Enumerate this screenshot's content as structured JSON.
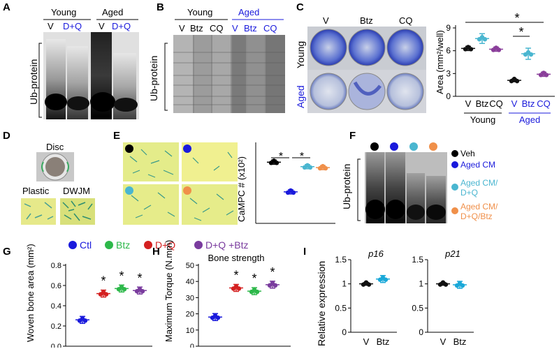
{
  "panels": {
    "A": {
      "label": "A",
      "groups": [
        "Young",
        "Aged"
      ],
      "lanes": [
        "V",
        "D+Q",
        "V",
        "D+Q"
      ],
      "ylabel": "Ub-protein"
    },
    "B": {
      "label": "B",
      "groups": [
        "Young",
        "Aged"
      ],
      "lanes": [
        "V",
        "Btz",
        "CQ",
        "V",
        "Btz",
        "CQ"
      ],
      "ylabel": "Ub-protein"
    },
    "C": {
      "label": "C",
      "cols": [
        "V",
        "Btz",
        "CQ"
      ],
      "rows": [
        "Young",
        "Aged"
      ],
      "star": "*"
    },
    "D": {
      "label": "D",
      "disc": "Disc",
      "plastic": "Plastic",
      "dwjm": "DWJM"
    },
    "E": {
      "label": "E",
      "star": "*"
    },
    "F": {
      "label": "F",
      "ylabel": "Ub-protein",
      "legend": [
        "Veh",
        "Aged CM",
        "Aged CM/ D+Q",
        "Aged CM/ D+Q/Btz"
      ],
      "legend_lines": [
        [
          "Veh"
        ],
        [
          "Aged CM"
        ],
        [
          "Aged CM/",
          "D+Q"
        ],
        [
          "Aged CM/",
          "D+Q/Btz"
        ]
      ]
    },
    "G": {
      "label": "G",
      "legend": [
        "Ctl",
        "Btz",
        "D+Q",
        "D+Q +Btz"
      ],
      "star": "*"
    },
    "H": {
      "label": "H",
      "title": "Bone strength",
      "star": "*"
    },
    "I": {
      "label": "I",
      "titles": [
        "p16",
        "p21"
      ],
      "ylabel": "Relative expression"
    }
  },
  "colors": {
    "ctl": "#1a1adc",
    "btz": "#2db84a",
    "dq": "#d42020",
    "dqbtz": "#7a3c9e",
    "veh": "#000000",
    "agedcm_dq": "#4ab6d0",
    "agedcm_dqbtz": "#f0904a",
    "cq": "#8a3e9a"
  },
  "chart_data": [
    {
      "type": "scatter",
      "panel": "C",
      "categories": [
        "V",
        "Btz",
        "CQ",
        "V",
        "Btz",
        "CQ"
      ],
      "groups": [
        "Young",
        "Aged"
      ],
      "values": [
        6.3,
        7.6,
        6.2,
        2.1,
        5.6,
        2.9
      ],
      "xlabel": "",
      "ylabel": "Area (mm²/well)",
      "yticks": [
        0,
        3,
        6,
        9
      ],
      "ylim": [
        0,
        9
      ]
    },
    {
      "type": "scatter",
      "panel": "E",
      "categories": [
        "Veh",
        "Aged CM",
        "Aged CM/D+Q",
        "Aged CM/D+Q/Btz"
      ],
      "values": [
        6.8,
        3.5,
        6.3,
        6.2
      ],
      "ylabel": "CaMPC # (x10²)",
      "ylim": [
        0,
        9
      ]
    },
    {
      "type": "scatter",
      "panel": "G",
      "categories": [
        "Ctl",
        "Btz",
        "D+Q",
        "D+Q +Btz"
      ],
      "values": [
        0.26,
        0.52,
        0.57,
        0.55
      ],
      "ylabel": "Woven bone area (mm²)",
      "yticks": [
        "0.0",
        "0.2",
        "0.4",
        "0.6",
        "0.8"
      ],
      "ylim": [
        0,
        0.8
      ]
    },
    {
      "type": "scatter",
      "panel": "H",
      "title": "Bone strength",
      "categories": [
        "Ctl",
        "Btz",
        "D+Q",
        "D+Q +Btz"
      ],
      "values": [
        18,
        36,
        34,
        38
      ],
      "ylabel": "Maximum Torque (N.mm)",
      "yticks": [
        "0",
        "10",
        "20",
        "30",
        "40",
        "50"
      ],
      "ylim": [
        0,
        50
      ]
    },
    {
      "type": "scatter",
      "panel": "I",
      "title": "p16",
      "categories": [
        "V",
        "Btz"
      ],
      "values": [
        1.0,
        1.1
      ],
      "ylabel": "Relative expression",
      "yticks": [
        "0",
        "0.5",
        "1",
        "1.5"
      ],
      "ylim": [
        0,
        1.5
      ]
    },
    {
      "type": "scatter",
      "panel": "I",
      "title": "p21",
      "categories": [
        "V",
        "Btz"
      ],
      "values": [
        1.0,
        0.98
      ],
      "yticks": [
        "0",
        "0.5",
        "1",
        "1.5"
      ],
      "ylim": [
        0,
        1.5
      ]
    }
  ]
}
